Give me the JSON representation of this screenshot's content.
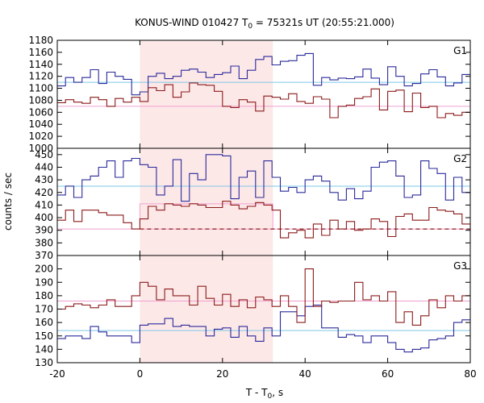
{
  "chart_data": {
    "type": "line",
    "title_prefix": "KONUS-WIND 010427 T",
    "title_sub": "0",
    "title_suffix": " = 75321s UT (20:55:21.000)",
    "xlabel_prefix": "T - T",
    "xlabel_sub": "0",
    "xlabel_suffix": ", s",
    "ylabel": "counts / sec",
    "xlim": [
      -20,
      80
    ],
    "x_ticks": [
      "-20",
      "0",
      "20",
      "40",
      "60",
      "80"
    ],
    "shaded_interval": [
      0,
      32.2
    ],
    "shade_color": "#fde8e8",
    "blue_color": "#2a2a9a",
    "red_color": "#8b1a1a",
    "blue_bg_color": "#7ec8e8",
    "red_bg_color": "#f0a0d0",
    "panels": [
      {
        "label": "G1",
        "ylim": [
          1000,
          1180
        ],
        "y_ticks": [
          1000,
          1020,
          1040,
          1060,
          1080,
          1100,
          1120,
          1140,
          1160,
          1180
        ],
        "blue_bg": 1110,
        "red_bg": 1070,
        "series": [
          {
            "color_key": "blue",
            "x": [
              -20,
              -18,
              -16,
              -14,
              -12,
              -10,
              -8,
              -6,
              -4,
              -2,
              0,
              2,
              4,
              6,
              8,
              10,
              12,
              14,
              16,
              18,
              20,
              22,
              24,
              26,
              28,
              30,
              32,
              34,
              36,
              38,
              40,
              42,
              44,
              46,
              48,
              50,
              52,
              54,
              56,
              58,
              60,
              62,
              64,
              66,
              68,
              70,
              72,
              74,
              76,
              78,
              80
            ],
            "y": [
              1104,
              1118,
              1110,
              1118,
              1131,
              1108,
              1127,
              1120,
              1115,
              1089,
              1094,
              1120,
              1125,
              1116,
              1120,
              1130,
              1132,
              1127,
              1118,
              1123,
              1126,
              1137,
              1116,
              1130,
              1148,
              1153,
              1139,
              1145,
              1146,
              1155,
              1158,
              1105,
              1118,
              1114,
              1117,
              1116,
              1119,
              1132,
              1117,
              1106,
              1136,
              1120,
              1104,
              1108,
              1124,
              1131,
              1119,
              1104,
              1109,
              1123,
              1123
            ]
          },
          {
            "color_key": "red",
            "x": [
              -20,
              -18,
              -16,
              -14,
              -12,
              -10,
              -8,
              -6,
              -4,
              -2,
              0,
              2,
              4,
              6,
              8,
              10,
              12,
              14,
              16,
              18,
              20,
              22,
              24,
              26,
              28,
              30,
              32,
              34,
              36,
              38,
              40,
              42,
              44,
              46,
              48,
              50,
              52,
              54,
              56,
              58,
              60,
              62,
              64,
              66,
              68,
              70,
              72,
              74,
              76,
              78,
              80
            ],
            "y": [
              1076,
              1081,
              1077,
              1075,
              1085,
              1081,
              1070,
              1083,
              1077,
              1085,
              1078,
              1101,
              1096,
              1106,
              1085,
              1094,
              1109,
              1106,
              1105,
              1095,
              1070,
              1068,
              1081,
              1077,
              1062,
              1087,
              1085,
              1082,
              1091,
              1078,
              1075,
              1086,
              1082,
              1051,
              1070,
              1072,
              1083,
              1086,
              1099,
              1064,
              1095,
              1097,
              1061,
              1092,
              1068,
              1070,
              1051,
              1058,
              1055,
              1060,
              1050
            ]
          }
        ]
      },
      {
        "label": "G2",
        "ylim": [
          370,
          455
        ],
        "y_ticks": [
          370,
          380,
          390,
          400,
          410,
          420,
          430,
          440,
          450
        ],
        "blue_bg": 425,
        "red_bg": 391,
        "red_mean_line": 411,
        "red_mean_x": [
          0,
          32.2
        ],
        "dashed_level": 391,
        "dashed_x": [
          0,
          80
        ],
        "series": [
          {
            "color_key": "blue",
            "x": [
              -20,
              -18,
              -16,
              -14,
              -12,
              -10,
              -8,
              -6,
              -4,
              -2,
              0,
              2,
              4,
              6,
              8,
              10,
              12,
              14,
              16,
              18,
              20,
              22,
              24,
              26,
              28,
              30,
              32,
              34,
              36,
              38,
              40,
              42,
              44,
              46,
              48,
              50,
              52,
              54,
              56,
              58,
              60,
              62,
              64,
              66,
              68,
              70,
              72,
              74,
              76,
              78,
              80
            ],
            "y": [
              418,
              425,
              416,
              430,
              433,
              440,
              445,
              432,
              445,
              447,
              442,
              440,
              418,
              425,
              446,
              413,
              435,
              430,
              450,
              450,
              449,
              415,
              432,
              437,
              416,
              445,
              432,
              421,
              424,
              420,
              430,
              433,
              429,
              420,
              414,
              423,
              415,
              421,
              440,
              444,
              445,
              433,
              416,
              418,
              445,
              439,
              435,
              414,
              432,
              420,
              430
            ]
          },
          {
            "color_key": "red",
            "x": [
              -20,
              -18,
              -16,
              -14,
              -12,
              -10,
              -8,
              -6,
              -4,
              -2,
              0,
              2,
              4,
              6,
              8,
              10,
              12,
              14,
              16,
              18,
              20,
              22,
              24,
              26,
              28,
              30,
              32,
              34,
              36,
              38,
              40,
              42,
              44,
              46,
              48,
              50,
              52,
              54,
              56,
              58,
              60,
              62,
              64,
              66,
              68,
              70,
              72,
              74,
              76,
              78,
              80
            ],
            "y": [
              398,
              406,
              397,
              406,
              406,
              404,
              402,
              402,
              396,
              391,
              399,
              409,
              406,
              411,
              410,
              409,
              411,
              410,
              408,
              408,
              413,
              410,
              407,
              409,
              412,
              410,
              406,
              384,
              388,
              390,
              384,
              395,
              386,
              398,
              391,
              397,
              390,
              391,
              399,
              397,
              385,
              401,
              403,
              398,
              398,
              408,
              406,
              405,
              403,
              395,
              395
            ]
          }
        ]
      },
      {
        "label": "G3",
        "ylim": [
          130,
          210
        ],
        "y_ticks": [
          130,
          140,
          150,
          160,
          170,
          180,
          190,
          200
        ],
        "blue_bg": 154,
        "red_bg": 176,
        "series": [
          {
            "color_key": "blue",
            "x": [
              -20,
              -18,
              -16,
              -14,
              -12,
              -10,
              -8,
              -6,
              -4,
              -2,
              0,
              2,
              4,
              6,
              8,
              10,
              12,
              14,
              16,
              18,
              20,
              22,
              24,
              26,
              28,
              30,
              32,
              34,
              36,
              38,
              40,
              42,
              44,
              46,
              48,
              50,
              52,
              54,
              56,
              58,
              60,
              62,
              64,
              66,
              68,
              70,
              72,
              74,
              76,
              78,
              80
            ],
            "y": [
              148,
              150,
              150,
              148,
              157,
              153,
              150,
              150,
              150,
              145,
              158,
              159,
              159,
              163,
              157,
              158,
              157,
              157,
              150,
              155,
              156,
              149,
              157,
              150,
              146,
              156,
              150,
              168,
              168,
              165,
              172,
              173,
              156,
              156,
              149,
              151,
              150,
              145,
              150,
              150,
              145,
              140,
              138,
              140,
              141,
              147,
              148,
              150,
              160,
              162,
              162
            ]
          },
          {
            "color_key": "red",
            "x": [
              -20,
              -18,
              -16,
              -14,
              -12,
              -10,
              -8,
              -6,
              -4,
              -2,
              0,
              2,
              4,
              6,
              8,
              10,
              12,
              14,
              16,
              18,
              20,
              22,
              24,
              26,
              28,
              30,
              32,
              34,
              36,
              38,
              40,
              42,
              44,
              46,
              48,
              50,
              52,
              54,
              56,
              58,
              60,
              62,
              64,
              66,
              68,
              70,
              72,
              74,
              76,
              78,
              80
            ],
            "y": [
              170,
              172,
              174,
              173,
              171,
              173,
              177,
              172,
              172,
              180,
              190,
              187,
              177,
              185,
              180,
              180,
              173,
              187,
              178,
              173,
              181,
              172,
              177,
              171,
              179,
              177,
              172,
              180,
              172,
              160,
              200,
              172,
              176,
              175,
              176,
              176,
              190,
              177,
              180,
              176,
              183,
              160,
              168,
              158,
              165,
              177,
              171,
              180,
              176,
              180,
              165
            ]
          }
        ]
      }
    ]
  }
}
